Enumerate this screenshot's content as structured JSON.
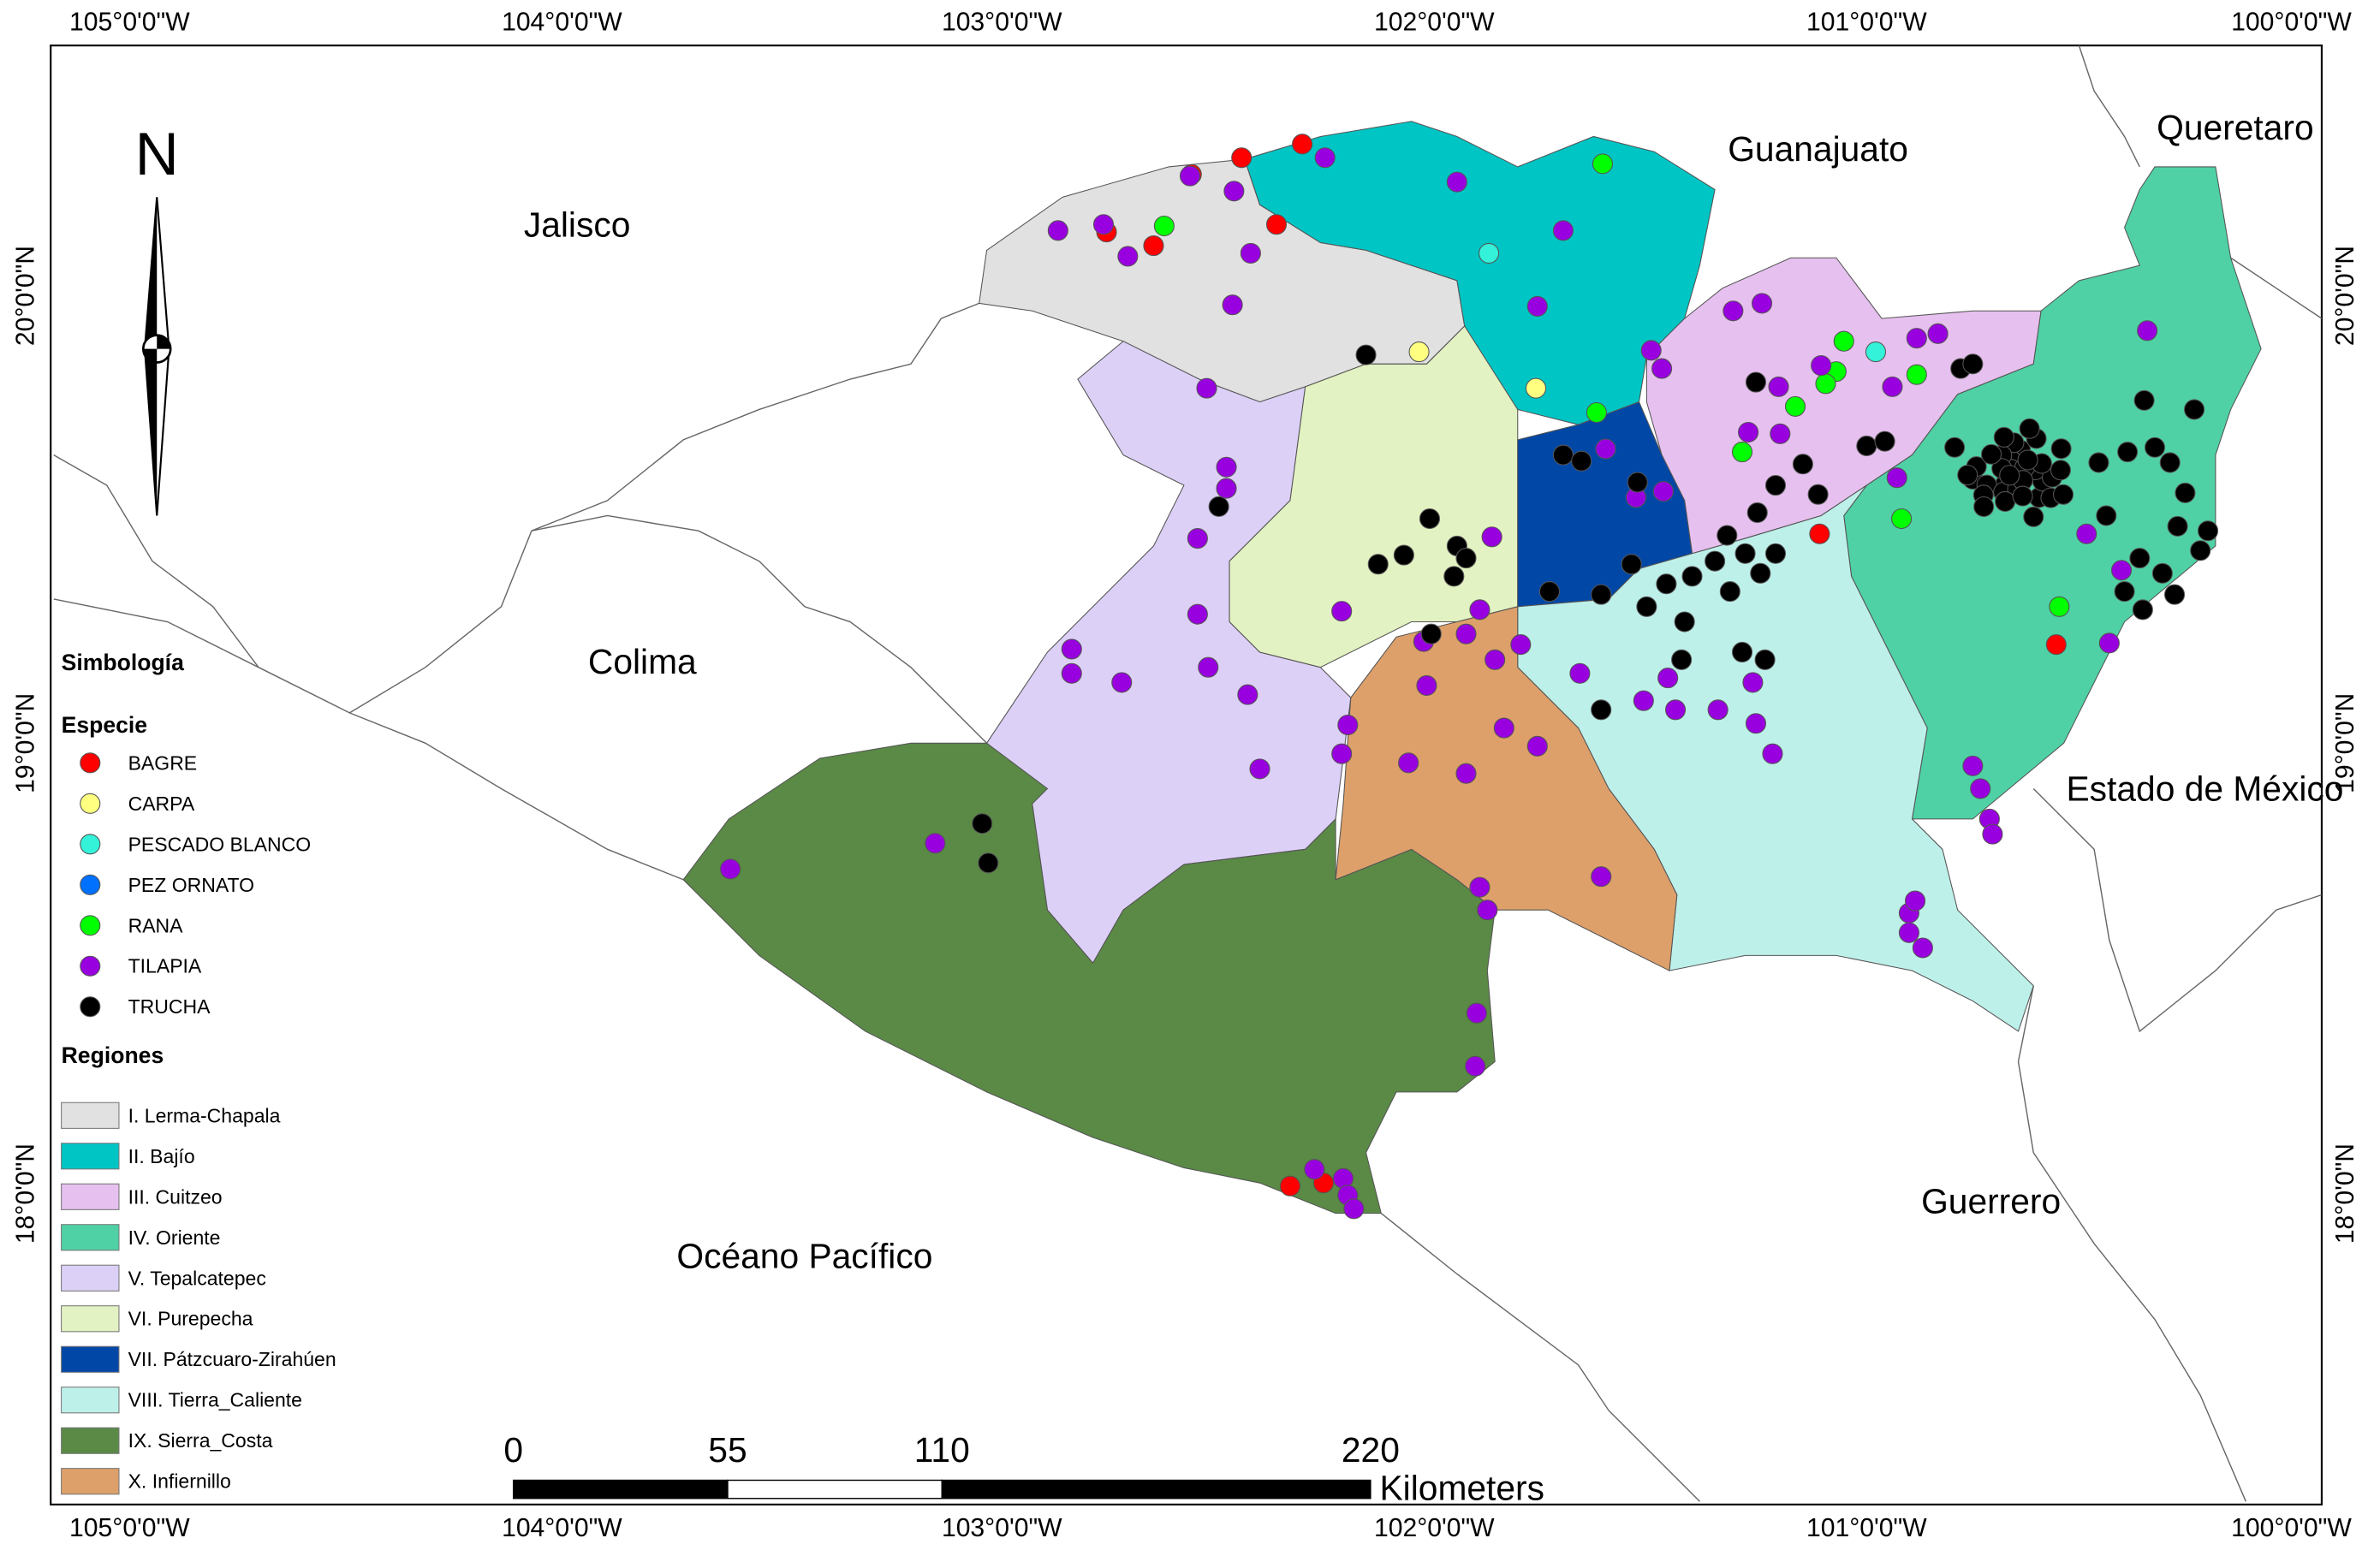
{
  "axes": {
    "top": [
      "105°0'0\"W",
      "104°0'0\"W",
      "103°0'0\"W",
      "102°0'0\"W",
      "101°0'0\"W",
      "100°0'0\"W"
    ],
    "bottom": [
      "105°0'0\"W",
      "104°0'0\"W",
      "103°0'0\"W",
      "102°0'0\"W",
      "101°0'0\"W",
      "100°0'0\"W"
    ],
    "left": [
      "20°0'0\"N",
      "19°0'0\"N",
      "18°0'0\"N"
    ],
    "right": [
      "20°0'0\"N",
      "19°0'0\"N",
      "18°0'0\"N"
    ]
  },
  "north_arrow": "N",
  "places": [
    "Jalisco",
    "Guanajuato",
    "Queretaro",
    "Colima",
    "Estado de México",
    "Guerrero",
    "Océano Pacífico"
  ],
  "legend": {
    "title": "Simbología",
    "species_title": "Especie",
    "species": [
      {
        "label": "BAGRE",
        "color": "#ff0000"
      },
      {
        "label": "CARPA",
        "color": "#ffff80"
      },
      {
        "label": "PESCADO BLANCO",
        "color": "#33f2d9"
      },
      {
        "label": "PEZ ORNATO",
        "color": "#0070ff"
      },
      {
        "label": "RANA",
        "color": "#00ff00"
      },
      {
        "label": "TILAPIA",
        "color": "#9900e0"
      },
      {
        "label": "TRUCHA",
        "color": "#000000"
      }
    ],
    "regions_title": "Regiones",
    "regions": [
      {
        "label": "I. Lerma-Chapala",
        "color": "#e1e1e1"
      },
      {
        "label": "II. Bajío",
        "color": "#00c5c5"
      },
      {
        "label": "III. Cuitzeo",
        "color": "#e6c0ef"
      },
      {
        "label": "IV. Oriente",
        "color": "#4fd1a5"
      },
      {
        "label": "V. Tepalcatepec",
        "color": "#ddd0f7"
      },
      {
        "label": "VI. Purepecha",
        "color": "#e3f2c2"
      },
      {
        "label": "VII. Pátzcuaro-Zirahúen",
        "color": "#0047a6"
      },
      {
        "label": "VIII. Tierra_Caliente",
        "color": "#bef0ea"
      },
      {
        "label": "IX. Sierra_Costa",
        "color": "#5a8a46"
      },
      {
        "label": "X. Infiernillo",
        "color": "#dea06a"
      }
    ]
  },
  "scale_bar": {
    "ticks": [
      0,
      55,
      110,
      220
    ],
    "unit": "Kilometers"
  }
}
